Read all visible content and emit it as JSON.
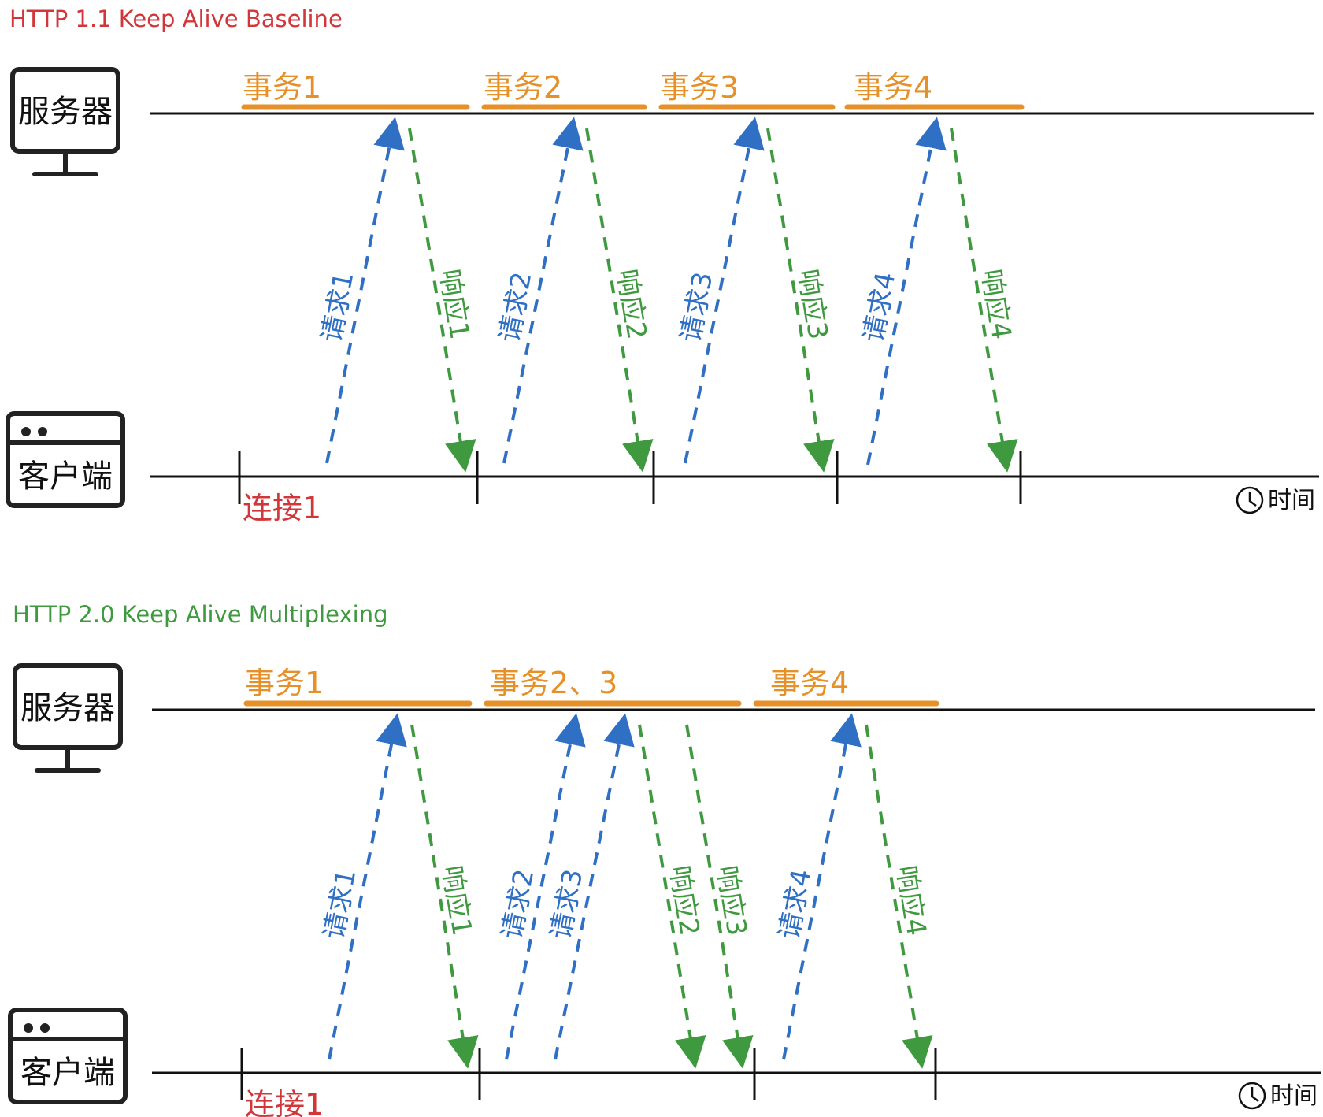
{
  "colors": {
    "title_http11": "#d1363a",
    "title_http20": "#3f9a3f",
    "transaction": "#e6902a",
    "request": "#2f6fc4",
    "response": "#3f9a3f",
    "connection": "#d1363a",
    "line": "#111111"
  },
  "icons": {
    "server": "monitor-icon",
    "client": "browser-window-icon",
    "time": "clock-icon"
  },
  "diagrams": [
    {
      "title": "HTTP 1.1 Keep Alive Baseline",
      "server_label": "服务器",
      "client_label": "客户端",
      "connection_label": "连接1",
      "time_label": "时间",
      "transactions": [
        "事务1",
        "事务2",
        "事务3",
        "事务4"
      ],
      "requests": [
        "请求1",
        "请求2",
        "请求3",
        "请求4"
      ],
      "responses": [
        "响应1",
        "响应2",
        "响应3",
        "响应4"
      ]
    },
    {
      "title": "HTTP 2.0 Keep Alive Multiplexing",
      "server_label": "服务器",
      "client_label": "客户端",
      "connection_label": "连接1",
      "time_label": "时间",
      "transactions": [
        "事务1",
        "事务2、3",
        "事务4"
      ],
      "requests": [
        "请求1",
        "请求2",
        "请求3",
        "请求4"
      ],
      "responses": [
        "响应1",
        "响应2",
        "响应3",
        "响应4"
      ]
    }
  ]
}
